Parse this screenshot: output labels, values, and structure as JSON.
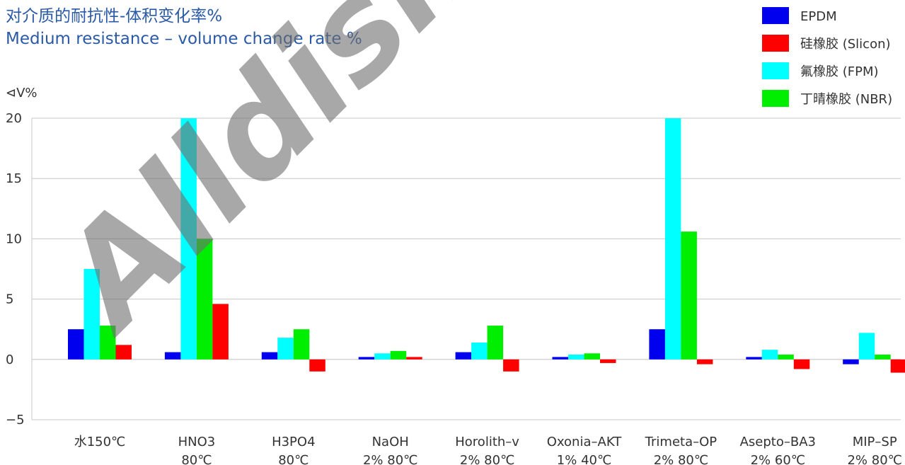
{
  "chart_data": {
    "type": "bar",
    "title": "对介质的耐抗性-体积变化率%",
    "subtitle": "Medium resistance – volume change rate %",
    "ylabel": "⊲V%",
    "ylim": [
      -5,
      20
    ],
    "yticks": [
      "20",
      "15",
      "10",
      "5",
      "0",
      "−5"
    ],
    "ytick_values": [
      20,
      15,
      10,
      5,
      0,
      -5
    ],
    "grid": "horizontal",
    "legend_position": "top-right",
    "categories": [
      [
        "水150℃"
      ],
      [
        "HNO3",
        "80℃"
      ],
      [
        "H3PO4",
        "80℃"
      ],
      [
        "NaOH",
        "2% 80℃"
      ],
      [
        "Horolith–v",
        "2% 80℃"
      ],
      [
        "Oxonia–AKT",
        "1% 40℃"
      ],
      [
        "Trimeta–OP",
        "2% 80℃"
      ],
      [
        "Asepto–BA3",
        "2% 60℃"
      ],
      [
        "MIP–SP",
        "2% 80℃"
      ]
    ],
    "series": [
      {
        "name": "EPDM",
        "color": "#0000ee",
        "values": [
          2.5,
          0.6,
          0.6,
          0.2,
          0.6,
          0.2,
          2.5,
          0.2,
          -0.4
        ]
      },
      {
        "name": "氟橡胶 (FPM)",
        "color": "#00ffff",
        "values": [
          7.5,
          20,
          1.8,
          0.5,
          1.4,
          0.4,
          20,
          0.8,
          2.2
        ]
      },
      {
        "name": "丁晴橡胶 (NBR)",
        "color": "#00ee00",
        "values": [
          2.8,
          10,
          2.5,
          0.7,
          2.8,
          0.5,
          10.6,
          0.4,
          0.4
        ]
      },
      {
        "name": "硅橡胶 (Slicon)",
        "color": "#ff0000",
        "values": [
          1.2,
          4.6,
          -1.0,
          0.2,
          -1.0,
          -0.3,
          -0.4,
          -0.8,
          -1.1
        ]
      }
    ],
    "legend": [
      {
        "name": "EPDM",
        "color": "#0000ee"
      },
      {
        "name": "硅橡胶 (Slicon)",
        "color": "#ff0000"
      },
      {
        "name": "氟橡胶 (FPM)",
        "color": "#00ffff"
      },
      {
        "name": "丁晴橡胶 (NBR)",
        "color": "#00ee00"
      }
    ]
  },
  "watermark": "Alldism"
}
